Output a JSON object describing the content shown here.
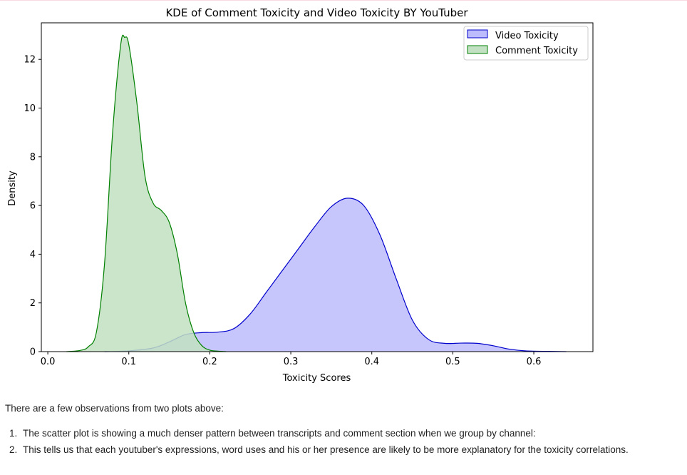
{
  "chart_data": {
    "type": "area",
    "title": "KDE of Comment Toxicity and Video Toxicity BY YouTuber",
    "xlabel": "Toxicity Scores",
    "ylabel": "Density",
    "xlim": [
      -0.008,
      0.673
    ],
    "ylim": [
      0,
      13.5
    ],
    "xticks": [
      "0.0",
      "0.1",
      "0.2",
      "0.3",
      "0.4",
      "0.5",
      "0.6"
    ],
    "yticks": [
      "0",
      "2",
      "4",
      "6",
      "8",
      "10",
      "12"
    ],
    "grid": false,
    "legend_position": "top-right",
    "series": [
      {
        "name": "Video Toxicity",
        "line_color": "#0000cc",
        "fill_color": "#bcbcfc",
        "x": [
          0.07,
          0.1,
          0.13,
          0.15,
          0.17,
          0.19,
          0.21,
          0.23,
          0.25,
          0.27,
          0.29,
          0.31,
          0.33,
          0.35,
          0.37,
          0.39,
          0.41,
          0.43,
          0.45,
          0.47,
          0.49,
          0.51,
          0.53,
          0.55,
          0.57,
          0.59,
          0.62,
          0.64
        ],
        "y": [
          0.0,
          0.03,
          0.15,
          0.4,
          0.7,
          0.78,
          0.8,
          0.95,
          1.55,
          2.45,
          3.35,
          4.25,
          5.15,
          5.95,
          6.3,
          6.0,
          4.8,
          3.0,
          1.3,
          0.5,
          0.34,
          0.35,
          0.34,
          0.24,
          0.1,
          0.03,
          0.01,
          0.0
        ]
      },
      {
        "name": "Comment Toxicity",
        "line_color": "#008000",
        "fill_color": "#c2e0c2",
        "x": [
          0.023,
          0.04,
          0.05,
          0.06,
          0.07,
          0.08,
          0.09,
          0.095,
          0.1,
          0.11,
          0.12,
          0.13,
          0.14,
          0.15,
          0.16,
          0.17,
          0.18,
          0.19,
          0.2,
          0.21,
          0.22
        ],
        "y": [
          0.0,
          0.05,
          0.2,
          0.8,
          3.6,
          9.0,
          12.6,
          12.9,
          12.6,
          10.2,
          7.2,
          6.1,
          5.8,
          5.3,
          4.0,
          2.0,
          0.8,
          0.25,
          0.06,
          0.02,
          0.0
        ]
      }
    ]
  },
  "notes": {
    "intro": "There are a few observations from two plots above:",
    "items": [
      "The scatter plot is showing a much denser pattern between transcripts and comment section when we group by channel:",
      "This tells us that each youtuber's expressions, word uses and his or her presence are likely to be more explanatory for the toxicity correlations."
    ]
  }
}
